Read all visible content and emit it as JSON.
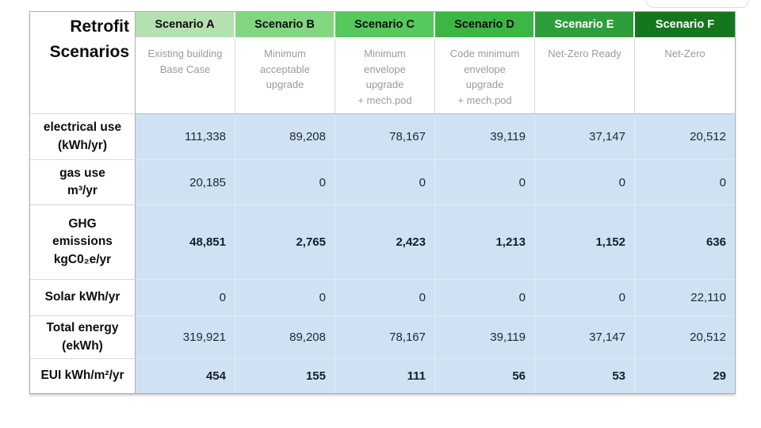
{
  "table": {
    "title": "Retrofit\nScenarios",
    "scenarios": [
      {
        "name": "Scenario A",
        "description": "Existing building\nBase Case",
        "header_bg": "#b5e0b0",
        "header_text": "#0d0d0d"
      },
      {
        "name": "Scenario B",
        "description": "Minimum\nacceptable\nupgrade",
        "header_bg": "#82d680",
        "header_text": "#0d0d0d"
      },
      {
        "name": "Scenario C",
        "description": "Minimum\nenvelope\nupgrade\n+ mech.pod",
        "header_bg": "#56c95c",
        "header_text": "#0d0d0d"
      },
      {
        "name": "Scenario D",
        "description": "Code minimum\nenvelope\nupgrade\n+ mech.pod",
        "header_bg": "#3cb746",
        "header_text": "#0d0d0d"
      },
      {
        "name": "Scenario E",
        "description": "Net-Zero Ready",
        "header_bg": "#2e9e3a",
        "header_text": "#ffffff"
      },
      {
        "name": "Scenario F",
        "description": "Net-Zero",
        "header_bg": "#15771d",
        "header_text": "#ffffff"
      }
    ],
    "rows": [
      {
        "label": "electrical use\n(kWh/yr)",
        "bold": false,
        "values": [
          "111,338",
          "89,208",
          "78,167",
          "39,119",
          "37,147",
          "20,512"
        ]
      },
      {
        "label": "gas use\nm³/yr",
        "bold": false,
        "values": [
          "20,185",
          "0",
          "0",
          "0",
          "0",
          "0"
        ]
      },
      {
        "label": "GHG\nemissions\nkgC0₂e/yr",
        "bold": true,
        "values": [
          "48,851",
          "2,765",
          "2,423",
          "1,213",
          "1,152",
          "636"
        ]
      },
      {
        "label": "Solar kWh/yr",
        "bold": false,
        "values": [
          "0",
          "0",
          "0",
          "0",
          "0",
          "22,110"
        ]
      },
      {
        "label": "Total energy\n(ekWh)",
        "bold": false,
        "values": [
          "319,921",
          "89,208",
          "78,167",
          "39,119",
          "37,147",
          "20,512"
        ]
      },
      {
        "label": "EUI kWh/m²/yr",
        "bold": true,
        "values": [
          "454",
          "155",
          "111",
          "56",
          "53",
          "29"
        ]
      }
    ],
    "colors": {
      "data_cell_bg": "#cfe2f3",
      "grid_line": "#e2e9f2",
      "outer_border": "#b0b0b0",
      "description_text": "#9b9b9b"
    }
  },
  "chart_data": {
    "type": "table",
    "title": "Retrofit Scenarios",
    "categories": [
      "Scenario A",
      "Scenario B",
      "Scenario C",
      "Scenario D",
      "Scenario E",
      "Scenario F"
    ],
    "category_descriptions": [
      "Existing building Base Case",
      "Minimum acceptable upgrade",
      "Minimum envelope upgrade + mech.pod",
      "Code minimum envelope upgrade + mech.pod",
      "Net-Zero Ready",
      "Net-Zero"
    ],
    "series": [
      {
        "name": "electrical use (kWh/yr)",
        "values": [
          111338,
          89208,
          78167,
          39119,
          37147,
          20512
        ]
      },
      {
        "name": "gas use m³/yr",
        "values": [
          20185,
          0,
          0,
          0,
          0,
          0
        ]
      },
      {
        "name": "GHG emissions kgC0₂e/yr",
        "values": [
          48851,
          2765,
          2423,
          1213,
          1152,
          636
        ]
      },
      {
        "name": "Solar kWh/yr",
        "values": [
          0,
          0,
          0,
          0,
          0,
          22110
        ]
      },
      {
        "name": "Total energy (ekWh)",
        "values": [
          319921,
          89208,
          78167,
          39119,
          37147,
          20512
        ]
      },
      {
        "name": "EUI kWh/m²/yr",
        "values": [
          454,
          155,
          111,
          56,
          53,
          29
        ]
      }
    ]
  }
}
